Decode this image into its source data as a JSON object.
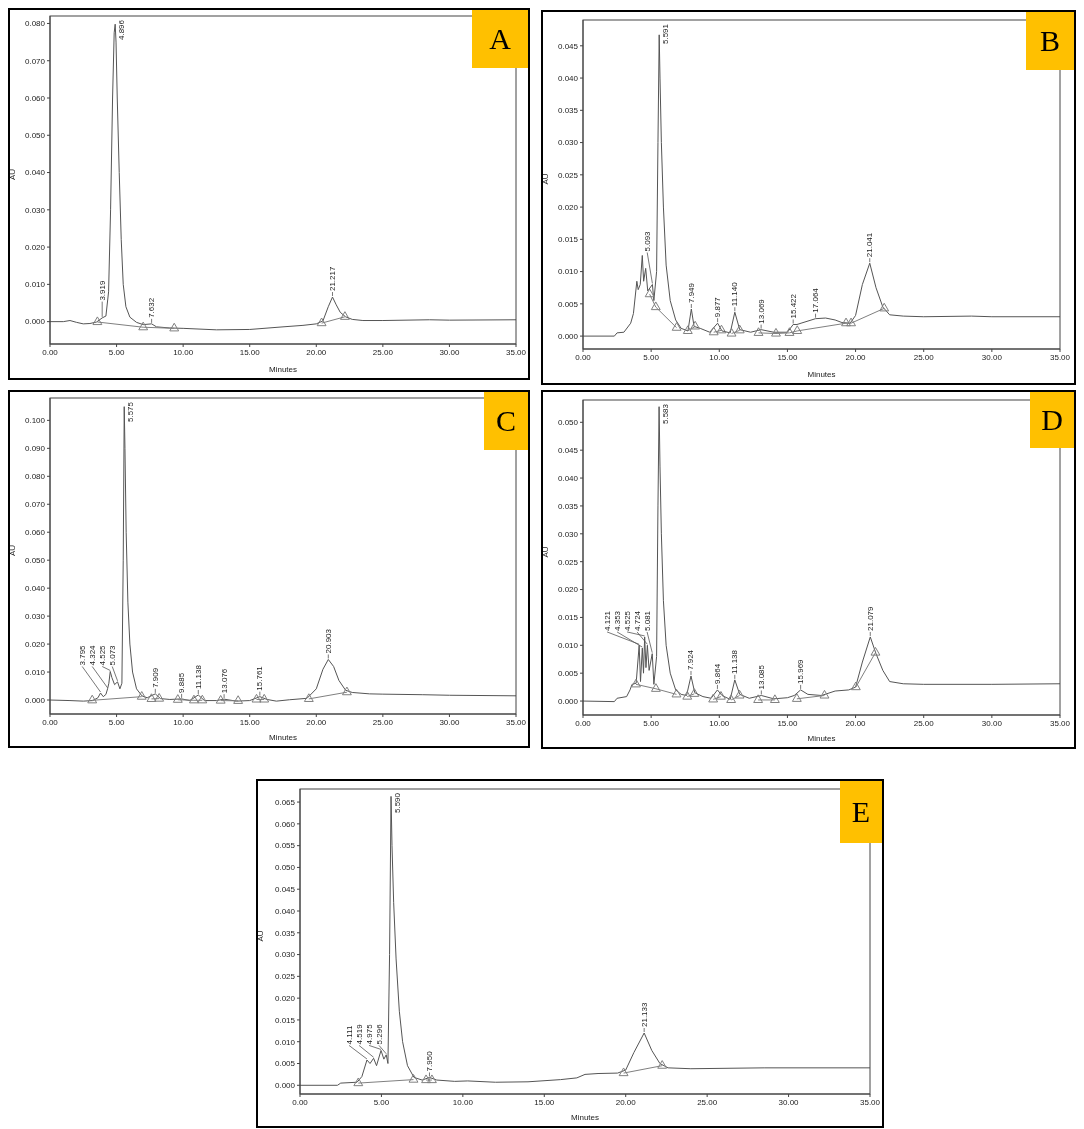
{
  "chart_data": [
    {
      "type": "line",
      "xlabel": "Minutes",
      "ylabel": "AU",
      "xlim": [
        0,
        35
      ],
      "ylim": [
        -0.006,
        0.082
      ],
      "xticks": [
        {
          "value": 0,
          "label": "0.00"
        },
        {
          "value": 5,
          "label": "5.00"
        },
        {
          "value": 10,
          "label": "10.00"
        },
        {
          "value": 15,
          "label": "15.00"
        },
        {
          "value": 20,
          "label": "20.00"
        },
        {
          "value": 25,
          "label": "25.00"
        },
        {
          "value": 30,
          "label": "30.00"
        },
        {
          "value": 35,
          "label": "35.00"
        }
      ],
      "yticks": [
        {
          "value": 0,
          "label": "0.000"
        },
        {
          "value": 0.01,
          "label": "0.010"
        },
        {
          "value": 0.02,
          "label": "0.020"
        },
        {
          "value": 0.03,
          "label": "0.030"
        },
        {
          "value": 0.04,
          "label": "0.040"
        },
        {
          "value": 0.05,
          "label": "0.050"
        },
        {
          "value": 0.06,
          "label": "0.060"
        },
        {
          "value": 0.07,
          "label": "0.070"
        },
        {
          "value": 0.08,
          "label": "0.080"
        }
      ],
      "annotations": [
        "A",
        {
          "text": "3.919",
          "x": 3.919,
          "y": 0.001
        },
        {
          "text": "4.896",
          "x": 4.896,
          "y": 0.0798
        },
        {
          "text": "7.632",
          "x": 7.632,
          "y": -0.0006
        },
        {
          "text": "21.217",
          "x": 21.217,
          "y": 0.0066
        }
      ],
      "series": [
        {
          "color": "#555555",
          "x": [
            0,
            1,
            1.5,
            2,
            2.5,
            3,
            3.5,
            3.919,
            4.2,
            4.4,
            4.55,
            4.7,
            4.82,
            4.896,
            4.96,
            5.05,
            5.2,
            5.35,
            5.5,
            5.7,
            6,
            6.5,
            7,
            7.632,
            8,
            9,
            10,
            12.5,
            15,
            17.5,
            19,
            20,
            20.5,
            20.9,
            21.217,
            21.5,
            21.8,
            22.2,
            22.7,
            23.5,
            25,
            28.5,
            30,
            35
          ],
          "values": [
            0,
            0,
            0.0003,
            -0.0002,
            -0.0006,
            -0.0005,
            -0.0001,
            0.001,
            0.0015,
            0.008,
            0.03,
            0.06,
            0.0775,
            0.0798,
            0.075,
            0.06,
            0.04,
            0.022,
            0.01,
            0.004,
            0.0012,
            -0.0002,
            -0.0008,
            -0.0006,
            -0.0014,
            -0.0017,
            -0.0018,
            -0.0022,
            -0.0021,
            -0.0014,
            -0.001,
            -0.0006,
            0.0002,
            0.004,
            0.0066,
            0.0045,
            0.0025,
            0.0013,
            0.0006,
            0.0003,
            0.0003,
            0.0005,
            0.0004,
            0.0005
          ]
        },
        {
          "color": "#808080",
          "marker": "triangle",
          "x": [
            3.56,
            7,
            9.33,
            15,
            20.4,
            22.15
          ],
          "values": [
            -0.0001,
            -0.0015,
            -0.0018,
            null,
            -0.0004,
            0.0013
          ]
        }
      ]
    },
    {
      "type": "line",
      "xlabel": "Minutes",
      "ylabel": "AU",
      "xlim": [
        0,
        35
      ],
      "ylim": [
        -0.002,
        0.049
      ],
      "xticks": [
        {
          "value": 0,
          "label": "0.00"
        },
        {
          "value": 5,
          "label": "5.00"
        },
        {
          "value": 10,
          "label": "10.00"
        },
        {
          "value": 15,
          "label": "15.00"
        },
        {
          "value": 20,
          "label": "20.00"
        },
        {
          "value": 25,
          "label": "25.00"
        },
        {
          "value": 30,
          "label": "30.00"
        },
        {
          "value": 35,
          "label": "35.00"
        }
      ],
      "yticks": [
        {
          "value": 0,
          "label": "0.000"
        },
        {
          "value": 0.005,
          "label": "0.005"
        },
        {
          "value": 0.01,
          "label": "0.010"
        },
        {
          "value": 0.015,
          "label": "0.015"
        },
        {
          "value": 0.02,
          "label": "0.020"
        },
        {
          "value": 0.025,
          "label": "0.025"
        },
        {
          "value": 0.03,
          "label": "0.030"
        },
        {
          "value": 0.035,
          "label": "0.035"
        },
        {
          "value": 0.04,
          "label": "0.040"
        },
        {
          "value": 0.045,
          "label": "0.045"
        }
      ],
      "annotations": [
        "B",
        {
          "text": "5.093",
          "x": 5.093,
          "y": 0.008
        },
        {
          "text": "5.591",
          "x": 5.591,
          "y": 0.0467
        },
        {
          "text": "7.949",
          "x": 7.949,
          "y": 0.0042
        },
        {
          "text": "9.877",
          "x": 9.877,
          "y": 0.002
        },
        {
          "text": "11.140",
          "x": 11.14,
          "y": 0.0037
        },
        {
          "text": "13.069",
          "x": 13.069,
          "y": 0.001
        },
        {
          "text": "15.422",
          "x": 15.422,
          "y": 0.0018
        },
        {
          "text": "17.064",
          "x": 17.064,
          "y": 0.0027
        },
        {
          "text": "21.041",
          "x": 21.041,
          "y": 0.0113
        }
      ],
      "series": [
        {
          "color": "#555555",
          "x": [
            0,
            2.3,
            2.5,
            3,
            3.5,
            3.7,
            3.95,
            4.05,
            4.2,
            4.35,
            4.45,
            4.6,
            4.75,
            5.093,
            5.2,
            5.4,
            5.5,
            5.591,
            5.65,
            5.75,
            5.9,
            6.1,
            6.4,
            6.8,
            7.2,
            7.7,
            7.949,
            8.15,
            8.6,
            9.3,
            9.877,
            10.2,
            10.8,
            11.14,
            11.5,
            12.3,
            13.069,
            14,
            15,
            15.422,
            15.7,
            16,
            17.064,
            17.8,
            18.5,
            19,
            19.6,
            20,
            20.5,
            21.041,
            21.5,
            22,
            22.5,
            23.5,
            25,
            28.5,
            30,
            35
          ],
          "values": [
            0,
            0,
            0.0005,
            0.0006,
            0.002,
            0.0035,
            0.0085,
            0.0072,
            0.008,
            0.0125,
            0.0085,
            0.0105,
            0.007,
            0.008,
            0.0055,
            0.01,
            0.03,
            0.0467,
            0.04,
            0.03,
            0.02,
            0.011,
            0.0055,
            0.0025,
            0.0012,
            0.0008,
            0.0042,
            0.0015,
            0.0012,
            0.0006,
            0.002,
            0.0008,
            0.0005,
            0.0037,
            0.001,
            0.0006,
            0.001,
            0.0006,
            0.0006,
            0.0018,
            0.0018,
            0.002,
            0.0027,
            0.0028,
            0.0025,
            0.0021,
            0.002,
            0.0032,
            0.008,
            0.0113,
            0.0075,
            0.0045,
            0.0033,
            0.0031,
            0.003,
            0.0031,
            0.003,
            0.003
          ]
        },
        {
          "color": "#808080",
          "marker": "triangle",
          "x": [
            4.89,
            5.34,
            6.87,
            7.3,
            7.69,
            8.23,
            8.9,
            9.59,
            10.16,
            10.5,
            10.9,
            11.5,
            12.2,
            12.88,
            14.16,
            15.15,
            15.72,
            19.3,
            19.67,
            22.1
          ],
          "values": [
            0.0065,
            0.0045,
            0.0013,
            null,
            0.0008,
            0.0015,
            null,
            0.0006,
            0.0009,
            null,
            0.0004,
            0.0009,
            null,
            0.0005,
            0.0004,
            0.0005,
            0.0008,
            0.002,
            0.002,
            0.0043
          ]
        }
      ]
    },
    {
      "type": "line",
      "xlabel": "Minutes",
      "ylabel": "AU",
      "xlim": [
        0,
        35
      ],
      "ylim": [
        -0.005,
        0.108
      ],
      "xticks": [
        {
          "value": 0,
          "label": "0.00"
        },
        {
          "value": 5,
          "label": "5.00"
        },
        {
          "value": 10,
          "label": "10.00"
        },
        {
          "value": 15,
          "label": "15.00"
        },
        {
          "value": 20,
          "label": "20.00"
        },
        {
          "value": 25,
          "label": "25.00"
        },
        {
          "value": 30,
          "label": "30.00"
        },
        {
          "value": 35,
          "label": "35.00"
        }
      ],
      "yticks": [
        {
          "value": 0,
          "label": "0.000"
        },
        {
          "value": 0.01,
          "label": "0.010"
        },
        {
          "value": 0.02,
          "label": "0.020"
        },
        {
          "value": 0.03,
          "label": "0.030"
        },
        {
          "value": 0.04,
          "label": "0.040"
        },
        {
          "value": 0.05,
          "label": "0.050"
        },
        {
          "value": 0.06,
          "label": "0.060"
        },
        {
          "value": 0.07,
          "label": "0.070"
        },
        {
          "value": 0.08,
          "label": "0.080"
        },
        {
          "value": 0.09,
          "label": "0.090"
        },
        {
          "value": 0.1,
          "label": "0.100"
        }
      ],
      "annotations": [
        "C",
        {
          "text": "3.795",
          "x": 3.795,
          "y": 0.0025
        },
        {
          "text": "4.324",
          "x": 4.324,
          "y": 0.004
        },
        {
          "text": "4.525",
          "x": 4.525,
          "y": 0.0102
        },
        {
          "text": "5.073",
          "x": 5.073,
          "y": 0.0065
        },
        {
          "text": "5.575",
          "x": 5.575,
          "y": 0.1049
        },
        {
          "text": "7.909",
          "x": 7.909,
          "y": 0.0022
        },
        {
          "text": "9.885",
          "x": 9.885,
          "y": 0.0004
        },
        {
          "text": "11.138",
          "x": 11.138,
          "y": 0.0018
        },
        {
          "text": "13.076",
          "x": 13.076,
          "y": 0.0003
        },
        {
          "text": "15.761",
          "x": 15.761,
          "y": 0.0012
        },
        {
          "text": "20.903",
          "x": 20.903,
          "y": 0.0145
        }
      ],
      "series": [
        {
          "color": "#555555",
          "x": [
            0,
            1.5,
            2.5,
            3.2,
            3.6,
            3.795,
            4,
            4.2,
            4.324,
            4.42,
            4.525,
            4.65,
            4.85,
            5.073,
            5.25,
            5.4,
            5.5,
            5.575,
            5.63,
            5.72,
            5.85,
            6,
            6.2,
            6.5,
            6.9,
            7.3,
            7.909,
            8.3,
            9,
            9.885,
            10.5,
            11.138,
            11.6,
            12.5,
            13.076,
            14,
            15,
            15.761,
            16.3,
            17,
            18,
            19.3,
            20,
            20.5,
            20.903,
            21.3,
            21.7,
            22.2,
            22.7,
            24,
            25,
            28,
            30,
            35
          ],
          "values": [
            0,
            -0.0002,
            -0.0004,
            -0.0002,
            0.0008,
            0.0025,
            0.0012,
            0.002,
            0.004,
            0.006,
            0.0102,
            0.008,
            0.0055,
            0.0065,
            0.004,
            0.006,
            0.05,
            0.1049,
            0.09,
            0.06,
            0.035,
            0.02,
            0.01,
            0.004,
            0.0015,
            0.0008,
            0.0022,
            0.0005,
            0.0002,
            0.0004,
            -0.0002,
            0.0018,
            -0.0002,
            -0.0002,
            0.0003,
            -0.0004,
            -0.0002,
            0.0012,
            0.0002,
            -0.0004,
            0.0001,
            0.0006,
            0.004,
            0.011,
            0.0145,
            0.012,
            0.007,
            0.0035,
            0.0027,
            0.0022,
            0.0021,
            0.0019,
            0.0017,
            0.0015
          ]
        },
        {
          "color": "#808080",
          "marker": "triangle",
          "x": [
            3.17,
            6.89,
            7.25,
            7.62,
            8.2,
            8.9,
            9.6,
            10.81,
            11.44,
            12.1,
            12.82,
            14.13,
            14.8,
            15.51,
            16.09,
            17.5,
            19.44,
            22.3
          ],
          "values": [
            -0.0001,
            0.0012,
            null,
            0.0004,
            0.0005,
            null,
            0.0001,
            -0.0001,
            -0.0001,
            null,
            -0.0002,
            -0.0003,
            null,
            0.0002,
            0.0002,
            null,
            0.0004,
            0.0028
          ]
        }
      ]
    },
    {
      "type": "line",
      "xlabel": "Minutes",
      "ylabel": "AU",
      "xlim": [
        0,
        35
      ],
      "ylim": [
        -0.0025,
        0.054
      ],
      "xticks": [
        {
          "value": 0,
          "label": "0.00"
        },
        {
          "value": 5,
          "label": "5.00"
        },
        {
          "value": 10,
          "label": "10.00"
        },
        {
          "value": 15,
          "label": "15.00"
        },
        {
          "value": 20,
          "label": "20.00"
        },
        {
          "value": 25,
          "label": "25.00"
        },
        {
          "value": 30,
          "label": "30.00"
        },
        {
          "value": 35,
          "label": "35.00"
        }
      ],
      "yticks": [
        {
          "value": 0,
          "label": "0.000"
        },
        {
          "value": 0.005,
          "label": "0.005"
        },
        {
          "value": 0.01,
          "label": "0.010"
        },
        {
          "value": 0.015,
          "label": "0.015"
        },
        {
          "value": 0.02,
          "label": "0.020"
        },
        {
          "value": 0.025,
          "label": "0.025"
        },
        {
          "value": 0.03,
          "label": "0.030"
        },
        {
          "value": 0.035,
          "label": "0.035"
        },
        {
          "value": 0.04,
          "label": "0.040"
        },
        {
          "value": 0.045,
          "label": "0.045"
        },
        {
          "value": 0.05,
          "label": "0.050"
        }
      ],
      "annotations": [
        "D",
        {
          "text": "4.121",
          "x": 4.121,
          "y": 0.01
        },
        {
          "text": "4.353",
          "x": 4.353,
          "y": 0.0095
        },
        {
          "text": "4.525",
          "x": 4.525,
          "y": 0.0115
        },
        {
          "text": "4.724",
          "x": 4.724,
          "y": 0.01
        },
        {
          "text": "5.081",
          "x": 5.081,
          "y": 0.0085
        },
        {
          "text": "5.583",
          "x": 5.583,
          "y": 0.0528
        },
        {
          "text": "7.924",
          "x": 7.924,
          "y": 0.0045
        },
        {
          "text": "9.864",
          "x": 9.864,
          "y": 0.002
        },
        {
          "text": "11.138",
          "x": 11.138,
          "y": 0.0038
        },
        {
          "text": "13.085",
          "x": 13.085,
          "y": 0.001
        },
        {
          "text": "15.969",
          "x": 15.969,
          "y": 0.002
        },
        {
          "text": "21.079",
          "x": 21.079,
          "y": 0.0115
        }
      ],
      "series": [
        {
          "color": "#555555",
          "x": [
            0,
            2.3,
            2.5,
            3.2,
            3.45,
            3.6,
            3.9,
            4.121,
            4.22,
            4.353,
            4.44,
            4.525,
            4.62,
            4.724,
            4.85,
            5.081,
            5.2,
            5.4,
            5.5,
            5.583,
            5.65,
            5.75,
            5.9,
            6.1,
            6.4,
            6.8,
            7.2,
            7.6,
            7.924,
            8.2,
            8.8,
            9.4,
            9.864,
            10.2,
            10.8,
            11.138,
            11.5,
            12.2,
            13.085,
            14,
            15,
            15.5,
            15.969,
            16.5,
            17.5,
            18.5,
            19.5,
            20,
            20.5,
            21.079,
            21.5,
            22,
            22.5,
            23.5,
            25,
            30,
            35
          ],
          "values": [
            0,
            -0.0001,
            0.0005,
            0.0008,
            0.002,
            0.003,
            0.0032,
            0.01,
            0.0035,
            0.0095,
            0.005,
            0.0115,
            0.006,
            0.01,
            0.0055,
            0.0085,
            0.003,
            0.008,
            0.035,
            0.0528,
            0.042,
            0.03,
            0.018,
            0.01,
            0.005,
            0.002,
            0.0012,
            0.001,
            0.0045,
            0.0015,
            0.0008,
            0.0005,
            0.002,
            0.001,
            0.0003,
            0.0038,
            0.0012,
            0.0005,
            0.001,
            0.0004,
            0.0006,
            0.001,
            0.002,
            0.0012,
            0.001,
            0.0018,
            0.002,
            0.0025,
            0.007,
            0.0115,
            0.0085,
            0.0055,
            0.0035,
            0.0031,
            0.003,
            0.003,
            0.0031
          ]
        },
        {
          "color": "#808080",
          "marker": "triangle",
          "x": [
            3.89,
            5.35,
            6.86,
            7.25,
            7.65,
            8.17,
            8.9,
            9.55,
            10.12,
            10.5,
            10.87,
            11.49,
            12.2,
            12.85,
            14.08,
            14.9,
            15.69,
            17.72,
            18.9,
            20.02,
            21.46
          ],
          "values": [
            0.003,
            0.0022,
            0.0012,
            null,
            0.0008,
            0.0013,
            null,
            0.0003,
            0.0008,
            null,
            0.0002,
            0.001,
            null,
            0.0002,
            0.0002,
            null,
            0.0004,
            0.001,
            null,
            0.0025,
            0.0087
          ]
        }
      ]
    },
    {
      "type": "line",
      "xlabel": "Minutes",
      "ylabel": "AU",
      "xlim": [
        0,
        35
      ],
      "ylim": [
        -0.002,
        0.068
      ],
      "xticks": [
        {
          "value": 0,
          "label": "0.00"
        },
        {
          "value": 5,
          "label": "5.00"
        },
        {
          "value": 10,
          "label": "10.00"
        },
        {
          "value": 15,
          "label": "15.00"
        },
        {
          "value": 20,
          "label": "20.00"
        },
        {
          "value": 25,
          "label": "25.00"
        },
        {
          "value": 30,
          "label": "30.00"
        },
        {
          "value": 35,
          "label": "35.00"
        }
      ],
      "yticks": [
        {
          "value": 0,
          "label": "0.000"
        },
        {
          "value": 0.005,
          "label": "0.005"
        },
        {
          "value": 0.01,
          "label": "0.010"
        },
        {
          "value": 0.015,
          "label": "0.015"
        },
        {
          "value": 0.02,
          "label": "0.020"
        },
        {
          "value": 0.025,
          "label": "0.025"
        },
        {
          "value": 0.03,
          "label": "0.030"
        },
        {
          "value": 0.035,
          "label": "0.035"
        },
        {
          "value": 0.04,
          "label": "0.040"
        },
        {
          "value": 0.045,
          "label": "0.045"
        },
        {
          "value": 0.05,
          "label": "0.050"
        },
        {
          "value": 0.055,
          "label": "0.055"
        },
        {
          "value": 0.06,
          "label": "0.060"
        },
        {
          "value": 0.065,
          "label": "0.065"
        }
      ],
      "annotations": [
        "E",
        {
          "text": "4.111",
          "x": 4.111,
          "y": 0.0058
        },
        {
          "text": "4.519",
          "x": 4.519,
          "y": 0.0062
        },
        {
          "text": "4.975",
          "x": 4.975,
          "y": 0.008
        },
        {
          "text": "5.296",
          "x": 5.296,
          "y": 0.007
        },
        {
          "text": "5.590",
          "x": 5.59,
          "y": 0.0663
        },
        {
          "text": "7.950",
          "x": 7.95,
          "y": 0.0018
        },
        {
          "text": "21.133",
          "x": 21.133,
          "y": 0.012
        }
      ],
      "series": [
        {
          "color": "#555555",
          "x": [
            0,
            2.3,
            2.5,
            3.5,
            3.8,
            4.111,
            4.3,
            4.519,
            4.7,
            4.975,
            5.15,
            5.296,
            5.4,
            5.5,
            5.59,
            5.65,
            5.75,
            5.9,
            6.1,
            6.3,
            6.6,
            7,
            7.5,
            7.95,
            8.4,
            9.5,
            10.3,
            12,
            14,
            16,
            17,
            17.5,
            18.3,
            19.5,
            20,
            20.5,
            21.133,
            21.6,
            22.1,
            22.6,
            24,
            28.5,
            35
          ],
          "values": [
            0,
            0,
            0.0005,
            0.0007,
            0.002,
            0.0058,
            0.005,
            0.0062,
            0.0045,
            0.008,
            0.006,
            0.007,
            0.005,
            0.03,
            0.0663,
            0.055,
            0.042,
            0.029,
            0.017,
            0.01,
            0.0045,
            0.0018,
            0.0012,
            0.0018,
            0.0012,
            0.0009,
            0.001,
            0.0007,
            0.0008,
            0.0013,
            0.0017,
            0.0025,
            0.0027,
            0.0028,
            0.0035,
            0.0075,
            0.012,
            0.008,
            0.005,
            0.004,
            0.0038,
            0.004,
            0.004
          ]
        },
        {
          "color": "#808080",
          "marker": "triangle",
          "x": [
            3.58,
            6.97,
            7.3,
            7.74,
            8.1,
            14,
            19.87,
            22.24
          ],
          "values": [
            0.0005,
            0.0013,
            null,
            0.0012,
            0.0012,
            null,
            0.0028,
            0.0045
          ]
        }
      ]
    }
  ]
}
